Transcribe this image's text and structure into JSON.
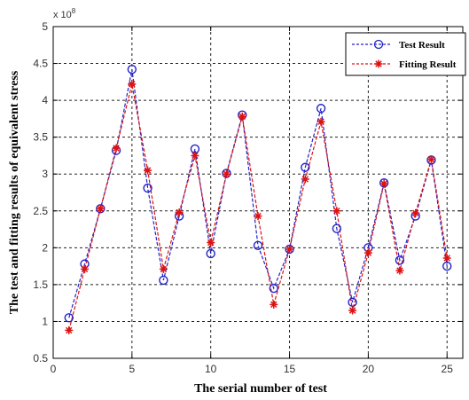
{
  "chart_data": {
    "type": "line",
    "xlabel": "The serial number of test",
    "ylabel": "The test and fitting results of equivalent stress",
    "y_multiplier": "x 10",
    "y_multiplier_exp": "8",
    "xlim": [
      0,
      26
    ],
    "ylim": [
      0.5,
      5
    ],
    "xticks": [
      0,
      5,
      10,
      15,
      20,
      25
    ],
    "yticks": [
      0.5,
      1,
      1.5,
      2,
      2.5,
      3,
      3.5,
      4,
      4.5,
      5
    ],
    "xtick_labels": [
      "0",
      "5",
      "10",
      "15",
      "20",
      "25"
    ],
    "ytick_labels": [
      "0.5",
      "1",
      "1.5",
      "2",
      "2.5",
      "3",
      "3.5",
      "4",
      "4.5",
      "5"
    ],
    "grid": true,
    "legend_position": "top-right",
    "x": [
      1,
      2,
      3,
      4,
      5,
      6,
      7,
      8,
      9,
      10,
      11,
      12,
      13,
      14,
      15,
      16,
      17,
      18,
      19,
      20,
      21,
      22,
      23,
      24,
      25
    ],
    "series": [
      {
        "name": "Test Result",
        "color": "#2222cc",
        "marker": "circle",
        "values": [
          1.05,
          1.78,
          2.53,
          3.32,
          4.42,
          2.81,
          1.56,
          2.43,
          3.34,
          1.92,
          3.01,
          3.8,
          2.03,
          1.45,
          1.98,
          3.09,
          3.89,
          2.26,
          1.26,
          2.0,
          2.88,
          1.83,
          2.43,
          3.19,
          1.75
        ]
      },
      {
        "name": "Fitting Result",
        "color": "#dd1111",
        "marker": "star",
        "values": [
          0.88,
          1.71,
          2.53,
          3.35,
          4.22,
          3.05,
          1.71,
          2.48,
          3.25,
          2.07,
          3.0,
          3.78,
          2.43,
          1.23,
          1.98,
          2.93,
          3.71,
          2.5,
          1.15,
          1.93,
          2.87,
          1.69,
          2.47,
          3.2,
          1.86
        ]
      }
    ]
  }
}
